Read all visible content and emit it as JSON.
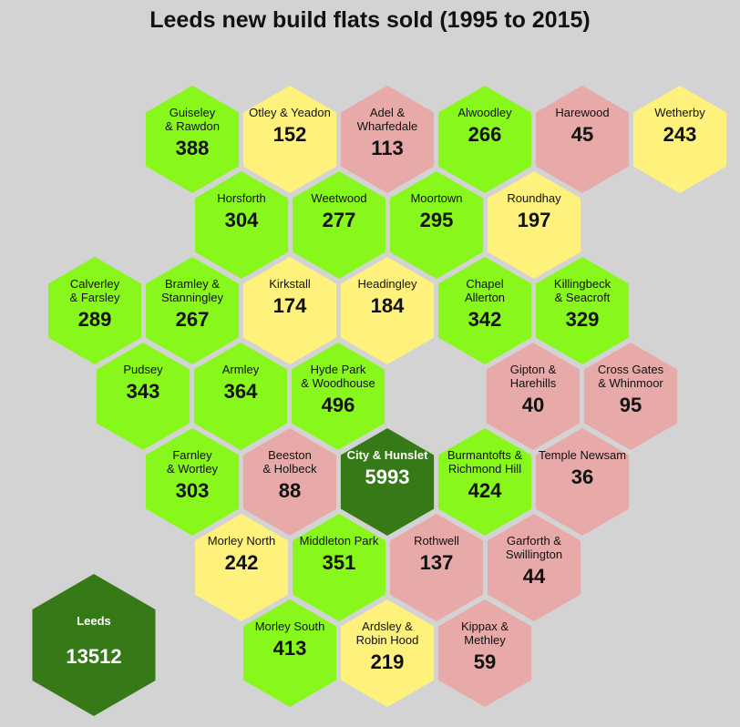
{
  "chart_data": {
    "type": "hexmap",
    "title": "Leeds new build flats sold (1995 to 2015)",
    "colors": {
      "green": "#88f71c",
      "yellow": "#fff27c",
      "pink": "#e8a9a9",
      "dark": "#357a17",
      "background": "#d3d3d3"
    },
    "total": {
      "name": "Leeds",
      "value": 13512,
      "color": "dark"
    },
    "wards": [
      {
        "name": "Guiseley & Rawdon",
        "value": 388,
        "color": "green",
        "row": 0,
        "col": 0
      },
      {
        "name": "Otley & Yeadon",
        "value": 152,
        "color": "yellow",
        "row": 0,
        "col": 1
      },
      {
        "name": "Adel & Wharfedale",
        "value": 113,
        "color": "pink",
        "row": 0,
        "col": 2
      },
      {
        "name": "Alwoodley",
        "value": 266,
        "color": "green",
        "row": 0,
        "col": 3
      },
      {
        "name": "Harewood",
        "value": 45,
        "color": "pink",
        "row": 0,
        "col": 4
      },
      {
        "name": "Wetherby",
        "value": 243,
        "color": "yellow",
        "row": 0,
        "col": 5
      },
      {
        "name": "Horsforth",
        "value": 304,
        "color": "green",
        "row": 1,
        "col": 0
      },
      {
        "name": "Weetwood",
        "value": 277,
        "color": "green",
        "row": 1,
        "col": 1
      },
      {
        "name": "Moortown",
        "value": 295,
        "color": "green",
        "row": 1,
        "col": 2
      },
      {
        "name": "Roundhay",
        "value": 197,
        "color": "yellow",
        "row": 1,
        "col": 3
      },
      {
        "name": "Calverley & Farsley",
        "value": 289,
        "color": "green",
        "row": 2,
        "col": 0
      },
      {
        "name": "Bramley & Stanningley",
        "value": 267,
        "color": "green",
        "row": 2,
        "col": 1
      },
      {
        "name": "Kirkstall",
        "value": 174,
        "color": "yellow",
        "row": 2,
        "col": 2
      },
      {
        "name": "Headingley",
        "value": 184,
        "color": "yellow",
        "row": 2,
        "col": 3
      },
      {
        "name": "Chapel Allerton",
        "value": 342,
        "color": "green",
        "row": 2,
        "col": 4
      },
      {
        "name": "Killingbeck & Seacroft",
        "value": 329,
        "color": "green",
        "row": 2,
        "col": 5
      },
      {
        "name": "Pudsey",
        "value": 343,
        "color": "green",
        "row": 3,
        "col": 0
      },
      {
        "name": "Armley",
        "value": 364,
        "color": "green",
        "row": 3,
        "col": 1
      },
      {
        "name": "Hyde Park & Woodhouse",
        "value": 496,
        "color": "green",
        "row": 3,
        "col": 2
      },
      {
        "name": "Gipton & Harehills",
        "value": 40,
        "color": "pink",
        "row": 3,
        "col": 4
      },
      {
        "name": "Cross Gates & Whinmoor",
        "value": 95,
        "color": "pink",
        "row": 3,
        "col": 5
      },
      {
        "name": "Farnley & Wortley",
        "value": 303,
        "color": "green",
        "row": 4,
        "col": 0
      },
      {
        "name": "Beeston & Holbeck",
        "value": 88,
        "color": "pink",
        "row": 4,
        "col": 1
      },
      {
        "name": "City & Hunslet",
        "value": 5993,
        "color": "dark",
        "row": 4,
        "col": 2
      },
      {
        "name": "Burmantofts & Richmond Hill",
        "value": 424,
        "color": "green",
        "row": 4,
        "col": 3
      },
      {
        "name": "Temple Newsam",
        "value": 36,
        "color": "pink",
        "row": 4,
        "col": 4
      },
      {
        "name": "Morley North",
        "value": 242,
        "color": "yellow",
        "row": 5,
        "col": 0
      },
      {
        "name": "Middleton Park",
        "value": 351,
        "color": "green",
        "row": 5,
        "col": 1
      },
      {
        "name": "Rothwell",
        "value": 137,
        "color": "pink",
        "row": 5,
        "col": 2
      },
      {
        "name": "Garforth & Swillington",
        "value": 44,
        "color": "pink",
        "row": 5,
        "col": 3
      },
      {
        "name": "Morley South",
        "value": 413,
        "color": "green",
        "row": 6,
        "col": 0
      },
      {
        "name": "Ardsley & Robin Hood",
        "value": 219,
        "color": "yellow",
        "row": 6,
        "col": 1
      },
      {
        "name": "Kippax & Methley",
        "value": 59,
        "color": "pink",
        "row": 6,
        "col": 2
      }
    ]
  }
}
